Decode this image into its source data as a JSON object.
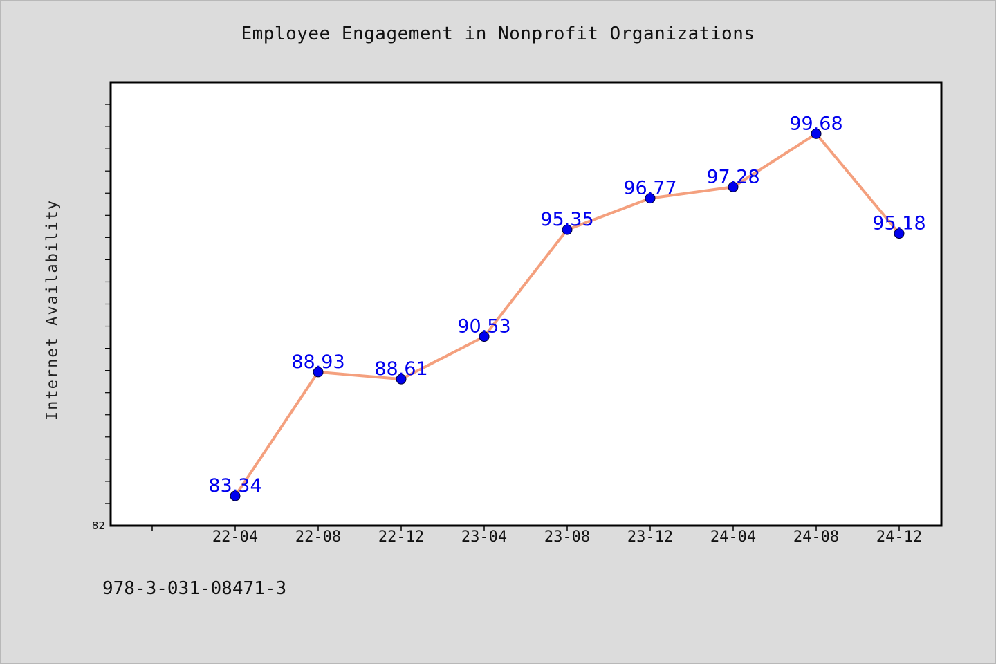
{
  "chart_data": {
    "type": "line",
    "title": "Employee Engagement in Nonprofit Organizations",
    "xlabel": "",
    "ylabel": "Internet Availability",
    "categories": [
      "22-04",
      "22-08",
      "22-12",
      "23-04",
      "23-08",
      "23-12",
      "24-04",
      "24-08",
      "24-12"
    ],
    "series": [
      {
        "values": [
          83.34,
          88.93,
          88.61,
          90.53,
          95.35,
          96.77,
          97.28,
          99.68,
          95.18
        ],
        "labels": [
          "83.34",
          "88.93",
          "88.61",
          "90.53",
          "95.35",
          "96.77",
          "97.28",
          "99.68",
          "95.18"
        ],
        "line_color": "#f4a07e",
        "marker_color": "#0000ee"
      }
    ],
    "ylim": [
      82,
      102
    ],
    "yticks_labeled": [
      "82"
    ],
    "grid": false,
    "legend": "none",
    "label_color": "#0000ee"
  },
  "footnote": "978-3-031-08471-3"
}
